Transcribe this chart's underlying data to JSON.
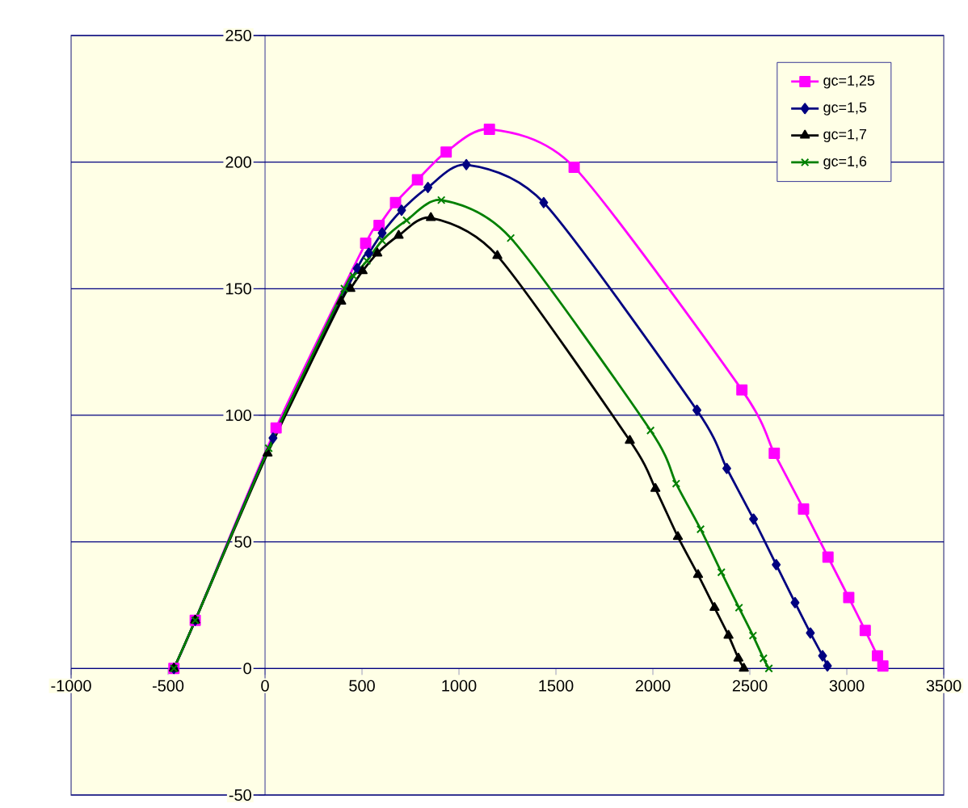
{
  "chart_data": {
    "type": "line",
    "xlim": [
      -1000,
      3500
    ],
    "ylim": [
      -50,
      250
    ],
    "xticks": [
      -1000,
      -500,
      0,
      500,
      1000,
      1500,
      2000,
      2500,
      3000,
      3500
    ],
    "yticks": [
      -50,
      0,
      50,
      100,
      150,
      200,
      250
    ],
    "grid": "y",
    "legend": "top right",
    "line_style": "solid",
    "series": [
      {
        "name": "gc=1,25",
        "color": "#ff00ff",
        "marker": "square",
        "x": [
          -470,
          -360,
          57,
          519,
          588,
          673,
          786,
          934,
          1157,
          1594,
          2459,
          2626,
          2777,
          2903,
          3010,
          3095,
          3158,
          3186
        ],
        "values": [
          0,
          19,
          95,
          168,
          175,
          184,
          193,
          204,
          213,
          198,
          110,
          85,
          63,
          44,
          28,
          15,
          5,
          1
        ]
      },
      {
        "name": "gc=1,5",
        "color": "#000080",
        "marker": "diamond",
        "x": [
          -470,
          -360,
          41,
          475,
          535,
          604,
          704,
          840,
          1038,
          1437,
          2227,
          2381,
          2519,
          2636,
          2733,
          2812,
          2875,
          2900
        ],
        "values": [
          0,
          19,
          91,
          158,
          164,
          172,
          181,
          190,
          199,
          184,
          102,
          79,
          59,
          41,
          26,
          14,
          5,
          1
        ]
      },
      {
        "name": "gc=1,7",
        "color": "#000000",
        "marker": "triangle",
        "x": [
          -470,
          -360,
          13,
          393,
          440,
          503,
          579,
          689,
          855,
          1198,
          1881,
          2013,
          2129,
          2233,
          2318,
          2390,
          2441,
          2469
        ],
        "values": [
          0,
          19,
          85,
          145,
          150,
          157,
          164,
          171,
          178,
          163,
          90,
          71,
          52,
          37,
          24,
          13,
          4,
          0
        ]
      },
      {
        "name": "gc=1,6",
        "color": "#008000",
        "marker": "cross",
        "x": [
          -470,
          -360,
          19,
          409,
          456,
          525,
          604,
          730,
          909,
          1267,
          1988,
          2120,
          2246,
          2353,
          2444,
          2516,
          2570,
          2598
        ],
        "values": [
          0,
          19,
          87,
          150,
          155,
          161,
          169,
          177,
          185,
          170,
          94,
          73,
          55,
          38,
          24,
          13,
          4,
          0
        ]
      }
    ]
  }
}
